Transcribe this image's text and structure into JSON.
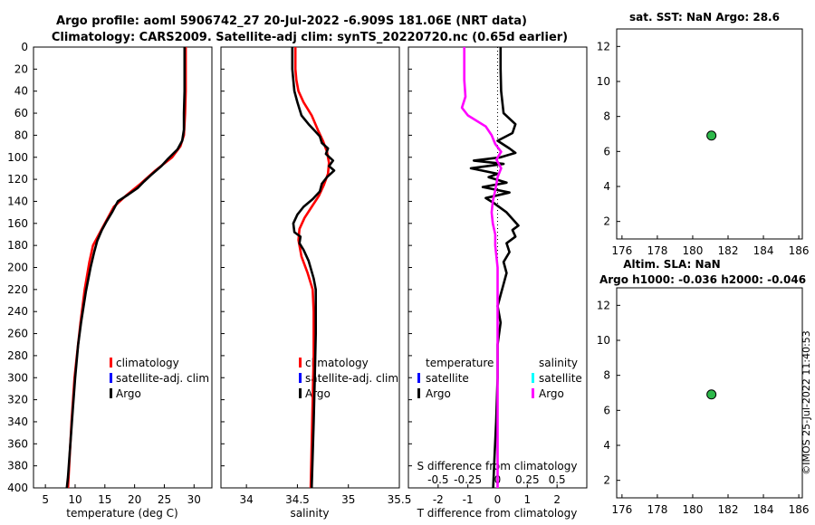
{
  "title_line1": "Argo profile: aoml 5906742_27 20-Jul-2022 -6.909S 181.06E (NRT data)",
  "title_line2": "Climatology: CARS2009. Satellite-adj clim: synTS_20220720.nc (0.65d earlier)",
  "watermark": "©IMOS 25-Jul-2022 11:40:53",
  "colors": {
    "climatology": "#ff0000",
    "satellite": "#0000ff",
    "argo": "#000000",
    "salinity_diff": "#ff00ff",
    "salinity_satellite": "#00ffff",
    "point_fill": "#2db84a"
  },
  "chart_data": [
    {
      "id": "temperature",
      "type": "line",
      "xlabel": "temperature (deg C)",
      "xlim": [
        3,
        33
      ],
      "xticks": [
        5,
        10,
        15,
        20,
        25,
        30
      ],
      "ylim": [
        0,
        400
      ],
      "yticks": [
        0,
        20,
        40,
        60,
        80,
        100,
        120,
        140,
        160,
        180,
        200,
        220,
        240,
        260,
        280,
        300,
        320,
        340,
        360,
        380,
        400
      ],
      "legend": [
        "climatology",
        "satellite-adj. clim",
        "Argo"
      ],
      "series": [
        {
          "name": "climatology",
          "color": "#ff0000",
          "points": [
            [
              28.6,
              0
            ],
            [
              28.6,
              40
            ],
            [
              28.5,
              60
            ],
            [
              28.3,
              80
            ],
            [
              27.7,
              90
            ],
            [
              26.3,
              100
            ],
            [
              23.5,
              112
            ],
            [
              21.0,
              124
            ],
            [
              18.5,
              135
            ],
            [
              16.5,
              145
            ],
            [
              15.0,
              160
            ],
            [
              14.0,
              170
            ],
            [
              13.0,
              180
            ],
            [
              12.4,
              195
            ],
            [
              11.6,
              220
            ],
            [
              10.9,
              250
            ],
            [
              10.3,
              280
            ],
            [
              9.9,
              300
            ],
            [
              9.4,
              340
            ],
            [
              9.0,
              380
            ],
            [
              8.8,
              400
            ]
          ]
        },
        {
          "name": "Argo",
          "color": "#000000",
          "points": [
            [
              28.4,
              0
            ],
            [
              28.4,
              40
            ],
            [
              28.3,
              60
            ],
            [
              28.3,
              75
            ],
            [
              28.0,
              85
            ],
            [
              27.2,
              93
            ],
            [
              25.5,
              102
            ],
            [
              24.5,
              108
            ],
            [
              22.8,
              116
            ],
            [
              21.6,
              122
            ],
            [
              20.5,
              128
            ],
            [
              18.9,
              134
            ],
            [
              17.2,
              140
            ],
            [
              16.2,
              150
            ],
            [
              15.3,
              158
            ],
            [
              14.5,
              166
            ],
            [
              13.7,
              176
            ],
            [
              13.2,
              186
            ],
            [
              12.6,
              200
            ],
            [
              11.8,
              222
            ],
            [
              11.0,
              250
            ],
            [
              10.5,
              270
            ],
            [
              10.0,
              300
            ],
            [
              9.6,
              330
            ],
            [
              9.2,
              360
            ],
            [
              8.8,
              390
            ],
            [
              8.6,
              400
            ]
          ]
        }
      ]
    },
    {
      "id": "salinity",
      "type": "line",
      "xlabel": "salinity",
      "xlim": [
        33.75,
        35.5
      ],
      "xticks": [
        34,
        34.5,
        35,
        35.5
      ],
      "ylim": [
        0,
        400
      ],
      "legend": [
        "climatology",
        "satellite-adj. clim",
        "Argo"
      ],
      "series": [
        {
          "name": "climatology",
          "color": "#ff0000",
          "points": [
            [
              34.48,
              0
            ],
            [
              34.48,
              20
            ],
            [
              34.49,
              30
            ],
            [
              34.51,
              40
            ],
            [
              34.56,
              50
            ],
            [
              34.64,
              62
            ],
            [
              34.7,
              75
            ],
            [
              34.75,
              85
            ],
            [
              34.79,
              95
            ],
            [
              34.81,
              105
            ],
            [
              34.8,
              115
            ],
            [
              34.76,
              125
            ],
            [
              34.71,
              135
            ],
            [
              34.64,
              145
            ],
            [
              34.57,
              155
            ],
            [
              34.52,
              165
            ],
            [
              34.51,
              175
            ],
            [
              34.54,
              190
            ],
            [
              34.6,
              205
            ],
            [
              34.65,
              220
            ],
            [
              34.66,
              240
            ],
            [
              34.66,
              280
            ],
            [
              34.65,
              320
            ],
            [
              34.64,
              360
            ],
            [
              34.63,
              400
            ]
          ]
        },
        {
          "name": "Argo",
          "color": "#000000",
          "points": [
            [
              34.45,
              0
            ],
            [
              34.45,
              20
            ],
            [
              34.46,
              30
            ],
            [
              34.47,
              40
            ],
            [
              34.5,
              50
            ],
            [
              34.54,
              62
            ],
            [
              34.61,
              70
            ],
            [
              34.67,
              76
            ],
            [
              34.72,
              81
            ],
            [
              34.74,
              87
            ],
            [
              34.8,
              92
            ],
            [
              34.78,
              97
            ],
            [
              34.85,
              103
            ],
            [
              34.81,
              108
            ],
            [
              34.86,
              112
            ],
            [
              34.79,
              118
            ],
            [
              34.74,
              124
            ],
            [
              34.72,
              131
            ],
            [
              34.65,
              138
            ],
            [
              34.56,
              145
            ],
            [
              34.5,
              152
            ],
            [
              34.46,
              160
            ],
            [
              34.47,
              168
            ],
            [
              34.53,
              172
            ],
            [
              34.52,
              178
            ],
            [
              34.56,
              184
            ],
            [
              34.61,
              194
            ],
            [
              34.66,
              210
            ],
            [
              34.68,
              220
            ],
            [
              34.68,
              260
            ],
            [
              34.67,
              300
            ],
            [
              34.66,
              340
            ],
            [
              34.65,
              370
            ],
            [
              34.64,
              400
            ]
          ]
        }
      ]
    },
    {
      "id": "difference",
      "type": "line",
      "xlabel": "T difference from climatology",
      "xlabel_top": "S difference from climatology",
      "xlim": [
        -3,
        3
      ],
      "xticks": [
        -2,
        -1,
        0,
        1,
        2
      ],
      "xticklabels_top": [
        "-0.5",
        "-0.25",
        "0",
        "0.25",
        "0.5"
      ],
      "ylim": [
        0,
        400
      ],
      "legend_left_title": "temperature",
      "legend_right_title": "salinity",
      "legend_left": [
        "satellite",
        "Argo"
      ],
      "legend_right": [
        "satellite",
        "Argo"
      ],
      "series": [
        {
          "name": "T difference (Argo)",
          "color": "#000000",
          "points": [
            [
              0.1,
              0
            ],
            [
              0.1,
              20
            ],
            [
              0.12,
              40
            ],
            [
              0.2,
              60
            ],
            [
              0.6,
              70
            ],
            [
              0.5,
              78
            ],
            [
              0.0,
              85
            ],
            [
              0.4,
              92
            ],
            [
              0.6,
              96
            ],
            [
              0.1,
              100
            ],
            [
              -0.8,
              103
            ],
            [
              0.2,
              106
            ],
            [
              -0.9,
              110
            ],
            [
              0.0,
              115
            ],
            [
              -0.3,
              118
            ],
            [
              0.3,
              123
            ],
            [
              -0.5,
              127
            ],
            [
              0.4,
              132
            ],
            [
              -0.4,
              137
            ],
            [
              -0.1,
              142
            ],
            [
              0.3,
              150
            ],
            [
              0.5,
              156
            ],
            [
              0.7,
              162
            ],
            [
              0.5,
              166
            ],
            [
              0.6,
              172
            ],
            [
              0.3,
              178
            ],
            [
              0.4,
              186
            ],
            [
              0.2,
              195
            ],
            [
              0.3,
              205
            ],
            [
              0.2,
              215
            ],
            [
              0.1,
              225
            ],
            [
              0.0,
              235
            ],
            [
              0.1,
              250
            ],
            [
              0.0,
              270
            ],
            [
              0.0,
              300
            ],
            [
              -0.05,
              340
            ],
            [
              -0.1,
              370
            ],
            [
              -0.15,
              400
            ]
          ]
        },
        {
          "name": "S difference (Argo)",
          "color": "#ff00ff",
          "points": [
            [
              -0.28,
              0
            ],
            [
              -0.28,
              30
            ],
            [
              -0.27,
              45
            ],
            [
              -0.3,
              55
            ],
            [
              -0.25,
              62
            ],
            [
              -0.1,
              72
            ],
            [
              -0.05,
              80
            ],
            [
              -0.02,
              88
            ],
            [
              0.03,
              95
            ],
            [
              -0.01,
              102
            ],
            [
              0.03,
              110
            ],
            [
              0.0,
              118
            ],
            [
              -0.02,
              130
            ],
            [
              -0.04,
              140
            ],
            [
              -0.05,
              150
            ],
            [
              -0.04,
              160
            ],
            [
              -0.02,
              170
            ],
            [
              -0.02,
              180
            ],
            [
              0.0,
              200
            ],
            [
              0.0,
              240
            ],
            [
              0.0,
              300
            ],
            [
              0.0,
              400
            ]
          ]
        }
      ]
    },
    {
      "id": "sst_panel",
      "type": "scatter",
      "title": "sat. SST: NaN Argo: 28.6",
      "xlim": [
        175.7,
        186.2
      ],
      "xticks": [
        176,
        178,
        180,
        182,
        184,
        186
      ],
      "ylim": [
        1,
        13
      ],
      "yticks": [
        2,
        4,
        6,
        8,
        10,
        12
      ],
      "points": [
        [
          181.06,
          6.909
        ]
      ]
    },
    {
      "id": "sla_panel",
      "type": "scatter",
      "title_line1": "Altim. SLA: NaN",
      "title_line2": "Argo h1000: -0.036 h2000: -0.046",
      "xlim": [
        175.7,
        186.2
      ],
      "xticks": [
        176,
        178,
        180,
        182,
        184,
        186
      ],
      "ylim": [
        1,
        13
      ],
      "yticks": [
        2,
        4,
        6,
        8,
        10,
        12
      ],
      "points": [
        [
          181.06,
          6.909
        ]
      ]
    }
  ]
}
